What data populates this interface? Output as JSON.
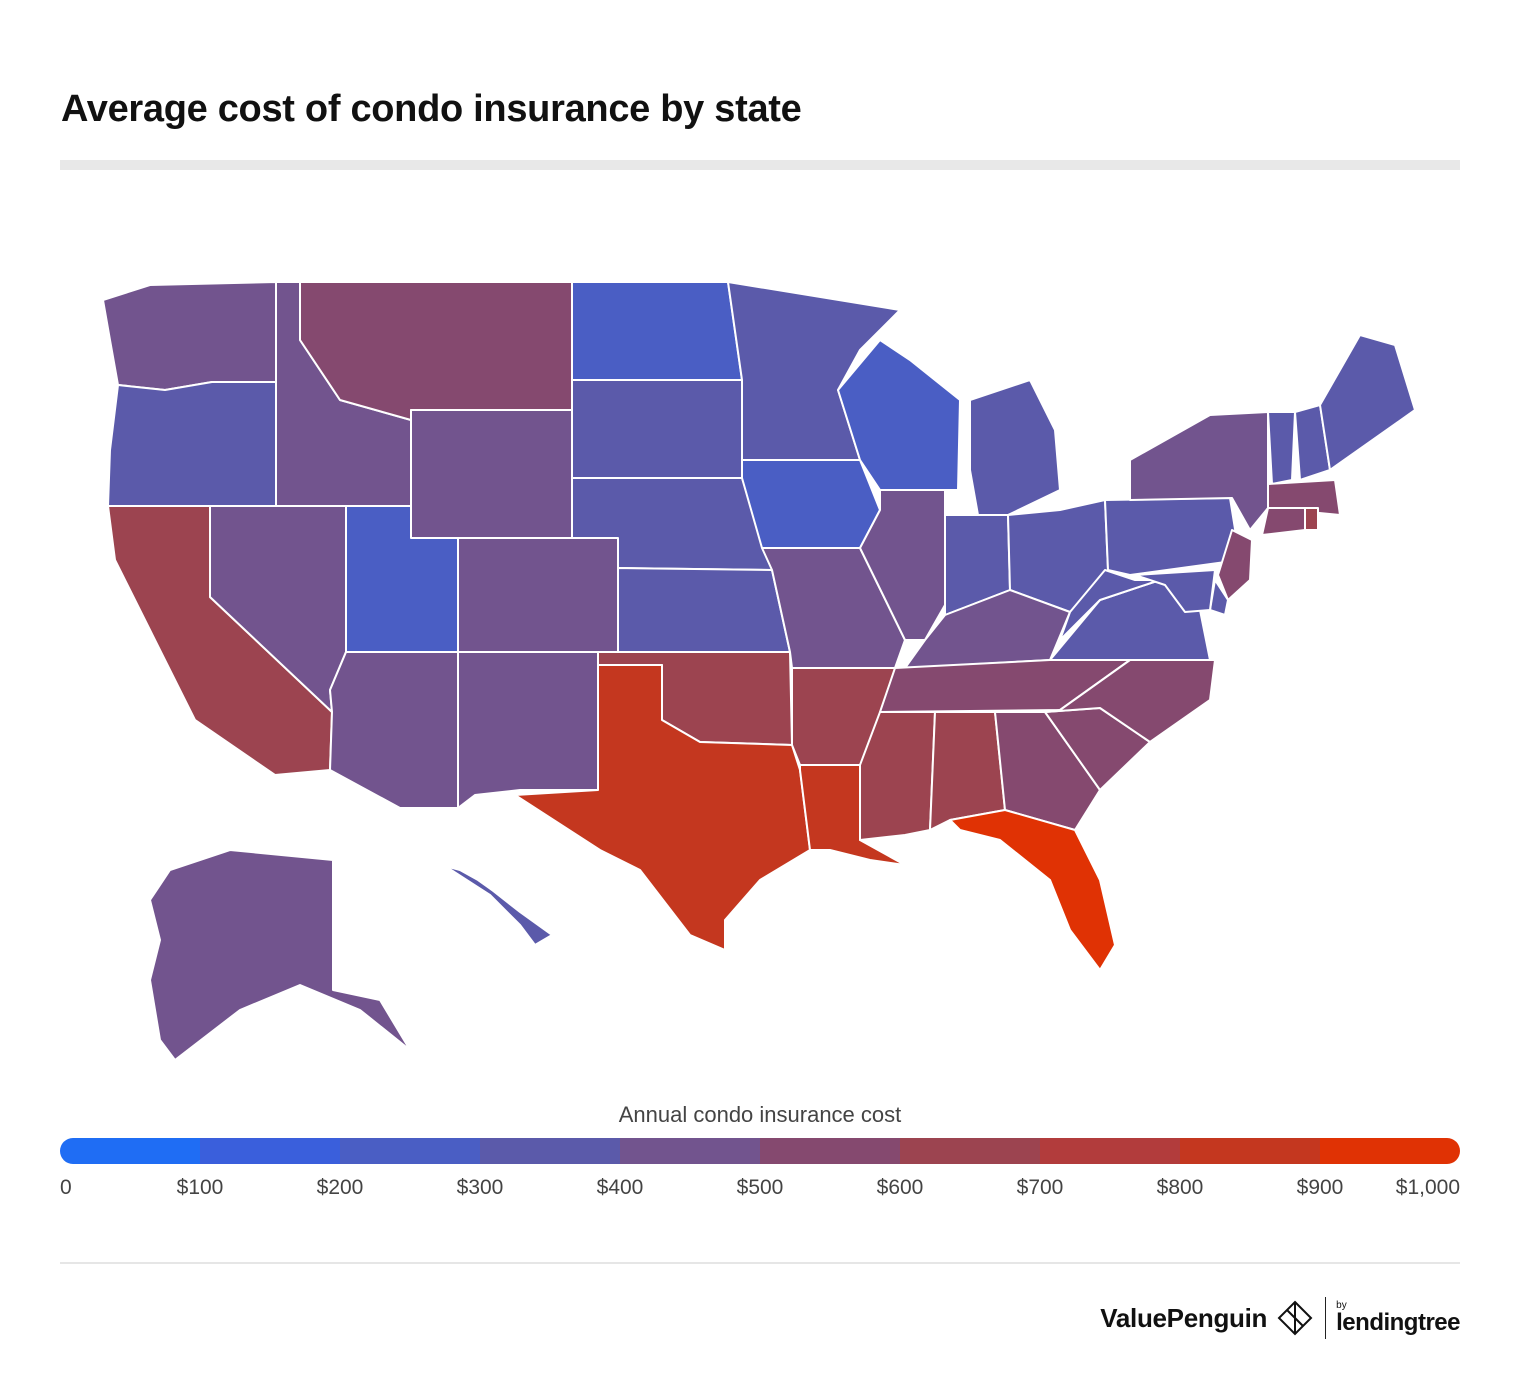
{
  "title": "Average cost of condo insurance by state",
  "legend": {
    "title": "Annual condo insurance cost",
    "ticks": [
      "0",
      "$100",
      "$200",
      "$300",
      "$400",
      "$500",
      "$600",
      "$700",
      "$800",
      "$900",
      "$1,000"
    ],
    "colors": [
      "#1f6df4",
      "#3a5fdc",
      "#4a5ec4",
      "#5b5aaa",
      "#72548e",
      "#85496f",
      "#9c4450",
      "#b23c3c",
      "#c4371f",
      "#e03204"
    ]
  },
  "chart_data": {
    "type": "choropleth",
    "legend_title": "Annual condo insurance cost",
    "scale_min": 0,
    "scale_max": 1000,
    "bin_size": 100,
    "values": {
      "WA": 450,
      "OR": 380,
      "CA": 650,
      "NV": 450,
      "ID": 450,
      "MT": 550,
      "WY": 450,
      "UT": 280,
      "AZ": 450,
      "CO": 450,
      "NM": 450,
      "ND": 280,
      "SD": 380,
      "NE": 380,
      "KS": 380,
      "OK": 650,
      "TX": 850,
      "MN": 380,
      "IA": 280,
      "MO": 450,
      "AR": 650,
      "LA": 850,
      "WI": 280,
      "IL": 450,
      "MI": 380,
      "IN": 380,
      "OH": 380,
      "KY": 450,
      "TN": 550,
      "MS": 650,
      "AL": 650,
      "GA": 550,
      "FL": 950,
      "SC": 550,
      "NC": 550,
      "VA": 380,
      "WV": 380,
      "PA": 380,
      "NY": 450,
      "VT": 380,
      "NH": 380,
      "ME": 380,
      "MA": 550,
      "RI": 650,
      "CT": 550,
      "NJ": 550,
      "DE": 380,
      "MD": 380,
      "AK": 450,
      "HI": 380
    }
  },
  "brand": {
    "name": "ValuePenguin",
    "by": "by",
    "partner": "lendingtree"
  }
}
